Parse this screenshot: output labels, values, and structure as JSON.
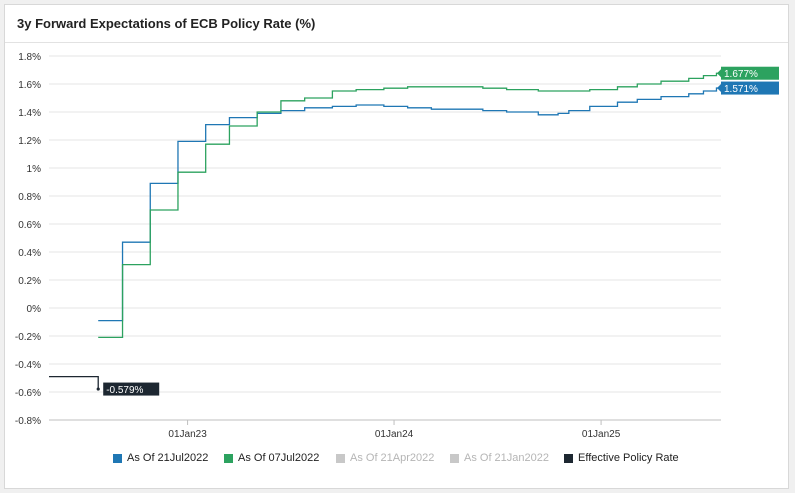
{
  "chart_data": {
    "type": "line",
    "title": "3y Forward Expectations of ECB Policy Rate (%)",
    "xlabel": "",
    "ylabel": "",
    "ylim": [
      -0.8,
      1.8
    ],
    "yticks": [
      -0.8,
      -0.6,
      -0.4,
      -0.2,
      0,
      0.2,
      0.4,
      0.6,
      0.8,
      1,
      1.2,
      1.4,
      1.6,
      1.8
    ],
    "ytick_labels": [
      "-0.8%",
      "-0.6%",
      "-0.4%",
      "-0.2%",
      "0%",
      "0.2%",
      "0.4%",
      "0.6%",
      "0.8%",
      "1%",
      "1.2%",
      "1.4%",
      "1.6%",
      "1.8%"
    ],
    "xlim": [
      "2022-05-01",
      "2025-08-01"
    ],
    "xticks": [
      "2023-01-01",
      "2024-01-01",
      "2025-01-01"
    ],
    "xtick_labels": [
      "01Jan23",
      "01Jan24",
      "01Jan25"
    ],
    "grid": "horizontal",
    "legend_position": "bottom",
    "series": [
      {
        "name": "As Of 21Jul2022",
        "color": "#1f77b4",
        "visible": true,
        "step": true,
        "end_label": "1.571%",
        "points": [
          [
            "2022-07-27",
            -0.09
          ],
          [
            "2022-09-08",
            0.47
          ],
          [
            "2022-10-27",
            0.89
          ],
          [
            "2022-12-15",
            1.19
          ],
          [
            "2023-02-02",
            1.31
          ],
          [
            "2023-03-16",
            1.36
          ],
          [
            "2023-05-04",
            1.39
          ],
          [
            "2023-06-15",
            1.41
          ],
          [
            "2023-07-27",
            1.43
          ],
          [
            "2023-09-14",
            1.44
          ],
          [
            "2023-10-26",
            1.45
          ],
          [
            "2023-12-14",
            1.44
          ],
          [
            "2024-01-25",
            1.43
          ],
          [
            "2024-03-07",
            1.42
          ],
          [
            "2024-04-11",
            1.42
          ],
          [
            "2024-06-06",
            1.41
          ],
          [
            "2024-07-18",
            1.4
          ],
          [
            "2024-09-12",
            1.38
          ],
          [
            "2024-10-17",
            1.39
          ],
          [
            "2024-11-05",
            1.41
          ],
          [
            "2024-12-12",
            1.44
          ],
          [
            "2025-01-30",
            1.47
          ],
          [
            "2025-03-06",
            1.49
          ],
          [
            "2025-04-17",
            1.51
          ],
          [
            "2025-06-05",
            1.53
          ],
          [
            "2025-07-01",
            1.55
          ],
          [
            "2025-07-24",
            1.571
          ]
        ]
      },
      {
        "name": "As Of 07Jul2022",
        "color": "#2ca25f",
        "visible": true,
        "step": true,
        "end_label": "1.677%",
        "points": [
          [
            "2022-07-27",
            -0.21
          ],
          [
            "2022-09-08",
            0.31
          ],
          [
            "2022-10-27",
            0.7
          ],
          [
            "2022-12-15",
            0.97
          ],
          [
            "2023-02-02",
            1.17
          ],
          [
            "2023-03-16",
            1.3
          ],
          [
            "2023-05-04",
            1.4
          ],
          [
            "2023-06-15",
            1.48
          ],
          [
            "2023-07-27",
            1.5
          ],
          [
            "2023-09-14",
            1.55
          ],
          [
            "2023-10-26",
            1.56
          ],
          [
            "2023-12-14",
            1.57
          ],
          [
            "2024-01-25",
            1.58
          ],
          [
            "2024-03-07",
            1.58
          ],
          [
            "2024-04-11",
            1.58
          ],
          [
            "2024-06-06",
            1.57
          ],
          [
            "2024-07-18",
            1.56
          ],
          [
            "2024-09-12",
            1.55
          ],
          [
            "2024-10-17",
            1.55
          ],
          [
            "2024-11-05",
            1.55
          ],
          [
            "2024-12-12",
            1.56
          ],
          [
            "2025-01-30",
            1.58
          ],
          [
            "2025-03-06",
            1.6
          ],
          [
            "2025-04-17",
            1.62
          ],
          [
            "2025-06-05",
            1.64
          ],
          [
            "2025-07-01",
            1.66
          ],
          [
            "2025-07-24",
            1.677
          ]
        ]
      },
      {
        "name": "As Of 21Apr2022",
        "color": "#c8c8c8",
        "visible": false,
        "points": []
      },
      {
        "name": "As Of 21Jan2022",
        "color": "#c8c8c8",
        "visible": false,
        "points": []
      },
      {
        "name": "Effective Policy Rate",
        "color": "#1d2731",
        "visible": true,
        "step": true,
        "end_label": "-0.579%",
        "points": [
          [
            "2022-05-01",
            -0.49
          ],
          [
            "2022-07-20",
            -0.49
          ],
          [
            "2022-07-27",
            -0.579
          ]
        ]
      }
    ]
  }
}
